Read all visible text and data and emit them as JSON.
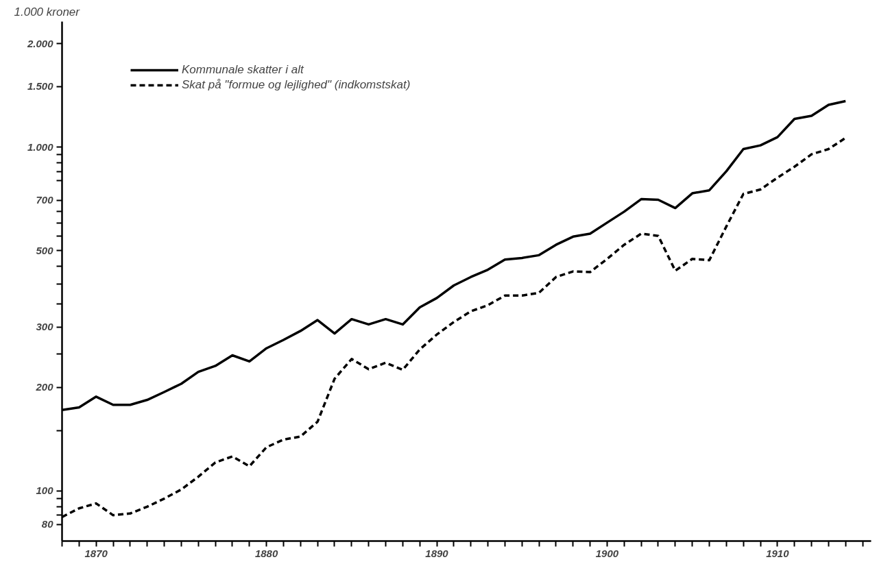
{
  "chart_data": {
    "type": "line",
    "ylabel": "1.000 kroner",
    "x": [
      1868,
      1869,
      1870,
      1871,
      1872,
      1873,
      1874,
      1875,
      1876,
      1877,
      1878,
      1879,
      1880,
      1881,
      1882,
      1883,
      1884,
      1885,
      1886,
      1887,
      1888,
      1889,
      1890,
      1891,
      1892,
      1893,
      1894,
      1895,
      1896,
      1897,
      1898,
      1899,
      1900,
      1901,
      1902,
      1903,
      1904,
      1905,
      1906,
      1907,
      1908,
      1909,
      1910,
      1911,
      1912,
      1913,
      1914
    ],
    "series": [
      {
        "name": "Kommunale skatter i alt",
        "color": "#000000",
        "line_style": "solid",
        "values": [
          172,
          175,
          188,
          178,
          178,
          184,
          194,
          205,
          222,
          231,
          248,
          238,
          260,
          275,
          292,
          314,
          287,
          316,
          305,
          316,
          305,
          342,
          364,
          396,
          419,
          440,
          471,
          476,
          485,
          520,
          549,
          560,
          603,
          649,
          706,
          703,
          665,
          734,
          749,
          851,
          987,
          1012,
          1069,
          1208,
          1233,
          1327,
          1361
        ]
      },
      {
        "name": "Skat på \"formue og lejlighed\" (indkomstskat)",
        "color": "#000000",
        "line_style": "dashed",
        "values": [
          84,
          89,
          92,
          85,
          86,
          90,
          95,
          101,
          110,
          121,
          126,
          118,
          134,
          141,
          144,
          159,
          212,
          242,
          226,
          236,
          225,
          258,
          285,
          310,
          333,
          347,
          370,
          370,
          377,
          419,
          435,
          433,
          473,
          520,
          560,
          552,
          437,
          473,
          469,
          588,
          731,
          753,
          815,
          877,
          953,
          987,
          1064
        ]
      }
    ],
    "log": "y",
    "legend": "top left",
    "grid": false,
    "marker": "none",
    "xlim": [
      1868,
      1915.5
    ],
    "xticks": [
      {
        "value": 1868,
        "label": null
      },
      {
        "value": 1869,
        "label": null
      },
      1870,
      {
        "value": 1871,
        "label": null
      },
      {
        "value": 1872,
        "label": null
      },
      {
        "value": 1873,
        "label": null
      },
      {
        "value": 1874,
        "label": null
      },
      {
        "value": 1875,
        "label": null
      },
      {
        "value": 1876,
        "label": null
      },
      {
        "value": 1877,
        "label": null
      },
      {
        "value": 1878,
        "label": null
      },
      {
        "value": 1879,
        "label": null
      },
      1880,
      {
        "value": 1881,
        "label": null
      },
      {
        "value": 1882,
        "label": null
      },
      {
        "value": 1883,
        "label": null
      },
      {
        "value": 1884,
        "label": null
      },
      {
        "value": 1885,
        "label": null
      },
      {
        "value": 1886,
        "label": null
      },
      {
        "value": 1887,
        "label": null
      },
      {
        "value": 1888,
        "label": null
      },
      {
        "value": 1889,
        "label": null
      },
      1890,
      {
        "value": 1891,
        "label": null
      },
      {
        "value": 1892,
        "label": null
      },
      {
        "value": 1893,
        "label": null
      },
      {
        "value": 1894,
        "label": null
      },
      {
        "value": 1895,
        "label": null
      },
      {
        "value": 1896,
        "label": null
      },
      {
        "value": 1897,
        "label": null
      },
      {
        "value": 1898,
        "label": null
      },
      {
        "value": 1899,
        "label": null
      },
      1900,
      {
        "value": 1901,
        "label": null
      },
      {
        "value": 1902,
        "label": null
      },
      {
        "value": 1903,
        "label": null
      },
      {
        "value": 1904,
        "label": null
      },
      {
        "value": 1905,
        "label": null
      },
      {
        "value": 1906,
        "label": null
      },
      {
        "value": 1907,
        "label": null
      },
      {
        "value": 1908,
        "label": null
      },
      {
        "value": 1909,
        "label": null
      },
      1910,
      {
        "value": 1911,
        "label": null
      },
      {
        "value": 1912,
        "label": null
      },
      {
        "value": 1913,
        "label": null
      },
      {
        "value": 1914,
        "label": null
      },
      {
        "value": 1915,
        "label": null
      }
    ],
    "ylim": [
      71.5,
      2318
    ],
    "yticks": [
      80,
      {
        "value": 85,
        "label": null
      },
      {
        "value": 90,
        "label": null
      },
      {
        "value": 95,
        "label": null
      },
      100,
      {
        "value": 150,
        "label": null
      },
      200,
      {
        "value": 250,
        "label": null
      },
      300,
      {
        "value": 350,
        "label": null
      },
      {
        "value": 400,
        "label": null
      },
      {
        "value": 450,
        "label": null
      },
      500,
      {
        "value": 550,
        "label": null
      },
      {
        "value": 600,
        "label": null
      },
      {
        "value": 650,
        "label": null
      },
      700,
      {
        "value": 800,
        "label": null
      },
      {
        "value": 850,
        "label": null
      },
      {
        "value": 900,
        "label": null
      },
      {
        "value": 950,
        "label": null
      },
      {
        "value": 1000,
        "label": "1.000"
      },
      {
        "value": 1500,
        "label": "1.500"
      },
      {
        "value": 2000,
        "label": "2.000"
      }
    ]
  }
}
